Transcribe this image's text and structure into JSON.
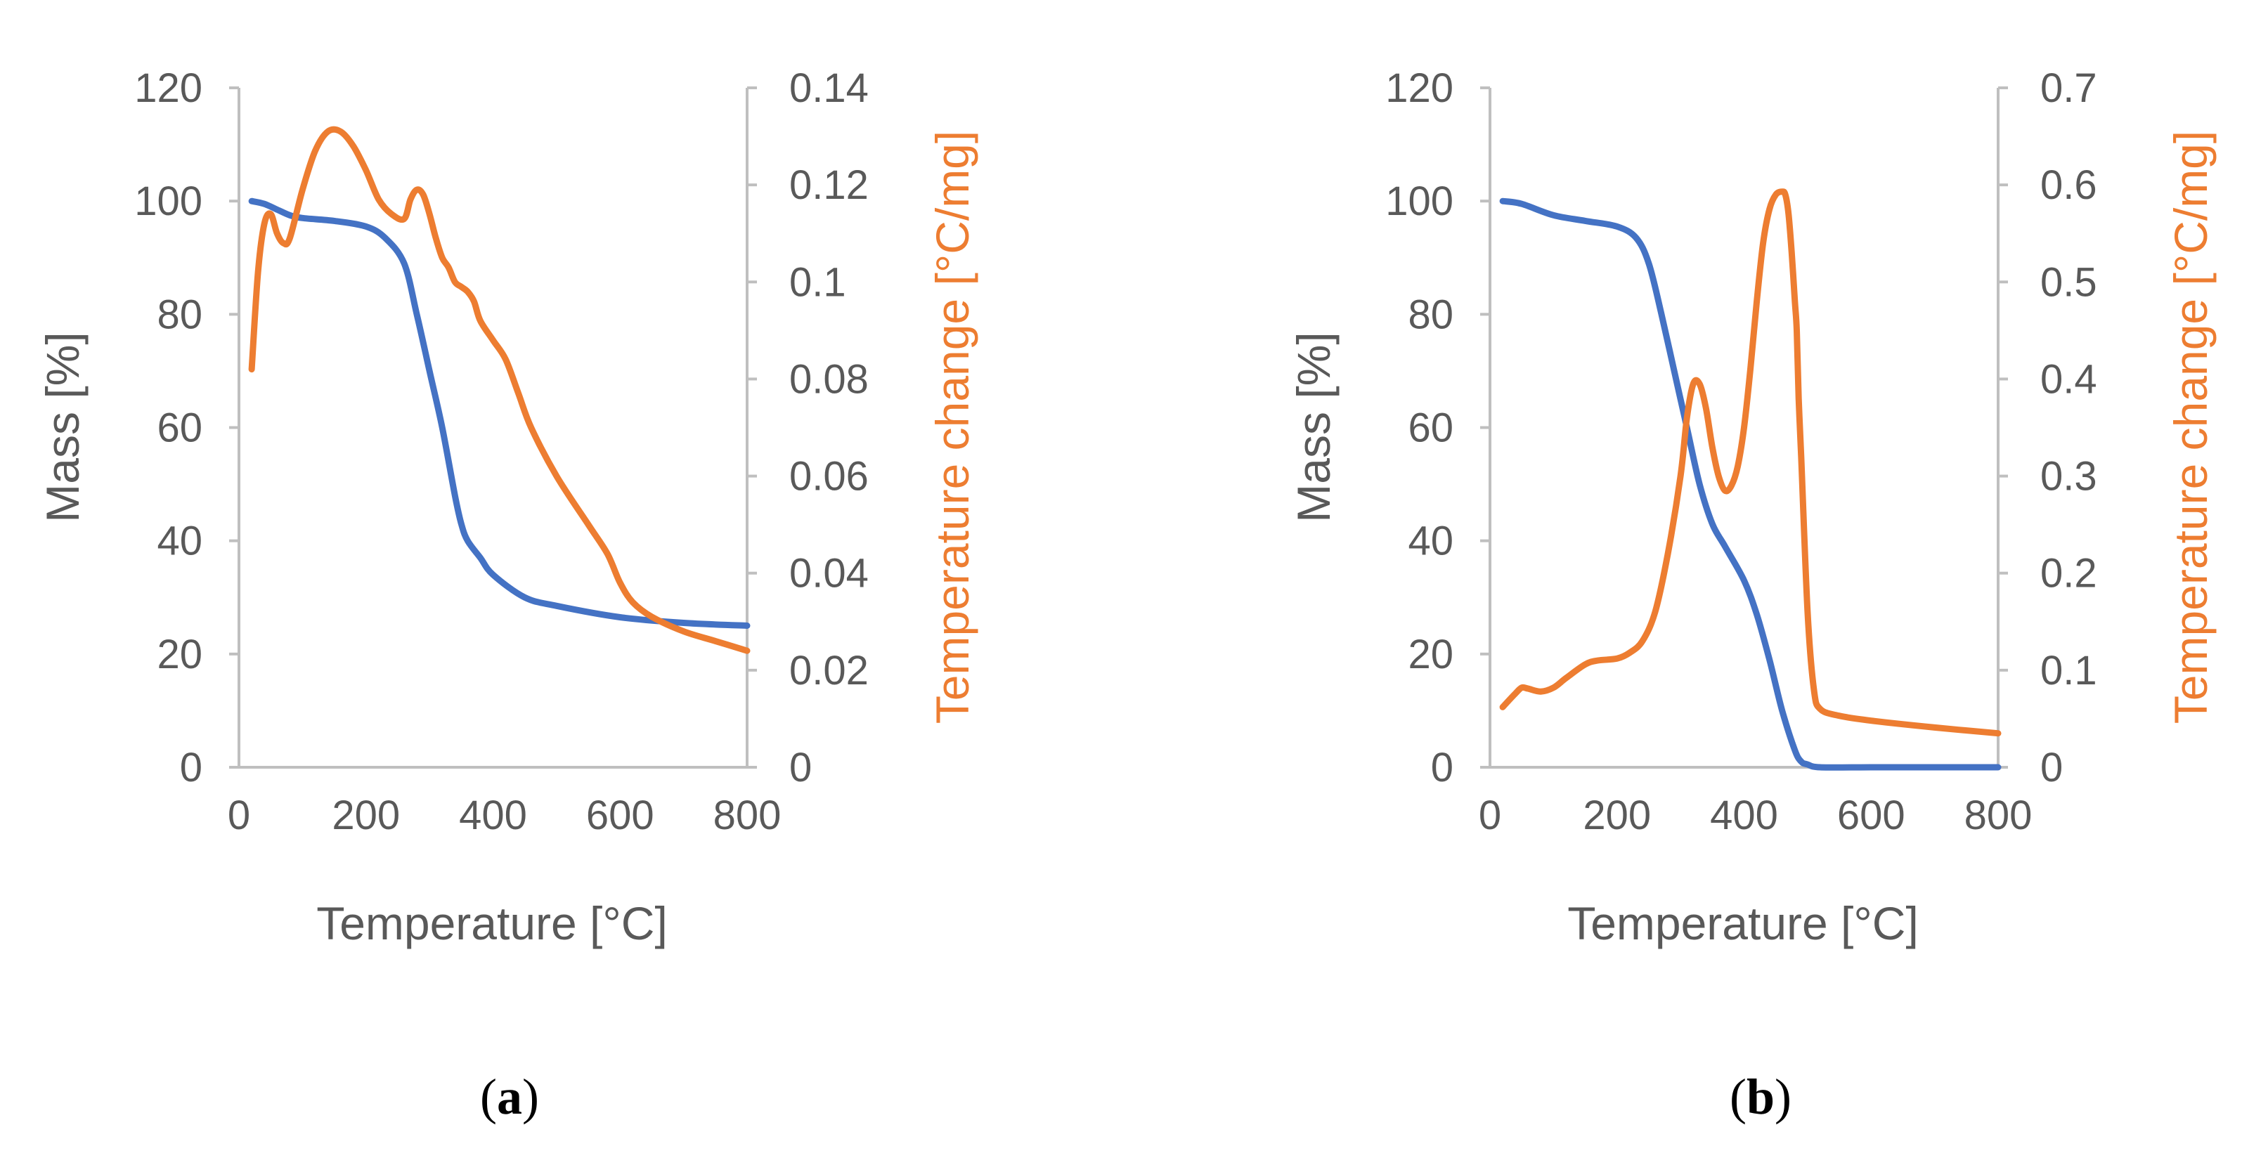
{
  "colors": {
    "mass": "#4472C4",
    "temperature_change": "#ED7D31",
    "axis": "#BFBFBF",
    "text": "#595959"
  },
  "chart_data": [
    {
      "type": "line",
      "panel_label": "a",
      "xlabel": "Temperature [°C]",
      "ylabel": "Mass [%]",
      "y2label": "Temperature change [°C/mg]",
      "xlim": [
        0,
        800
      ],
      "ylim": [
        0,
        120
      ],
      "y2lim": [
        0,
        0.14
      ],
      "xticks": [
        "0",
        "200",
        "400",
        "600",
        "800"
      ],
      "yticks": [
        "0",
        "20",
        "40",
        "60",
        "80",
        "100",
        "120"
      ],
      "y2ticks": [
        "0",
        "0.02",
        "0.04",
        "0.06",
        "0.08",
        "0.1",
        "0.12",
        "0.14"
      ],
      "grid": false,
      "series": [
        {
          "name": "Mass",
          "axis": "left",
          "x": [
            20,
            40,
            60,
            80,
            100,
            150,
            200,
            230,
            260,
            280,
            300,
            320,
            340,
            350,
            360,
            380,
            400,
            450,
            500,
            600,
            700,
            800
          ],
          "y": [
            100,
            99.5,
            98.5,
            97.5,
            97,
            96.5,
            95.5,
            93.5,
            89,
            80,
            70,
            60,
            48,
            43,
            40,
            37,
            34,
            30,
            28.5,
            26.5,
            25.5,
            25
          ]
        },
        {
          "name": "Temperature change",
          "axis": "right",
          "x": [
            20,
            30,
            40,
            50,
            60,
            70,
            80,
            100,
            120,
            140,
            160,
            180,
            200,
            220,
            240,
            260,
            270,
            280,
            290,
            300,
            310,
            320,
            330,
            340,
            350,
            360,
            370,
            380,
            400,
            420,
            440,
            460,
            500,
            550,
            580,
            600,
            620,
            650,
            700,
            750,
            800
          ],
          "y": [
            0.082,
            0.102,
            0.112,
            0.114,
            0.11,
            0.108,
            0.109,
            0.119,
            0.127,
            0.131,
            0.131,
            0.128,
            0.123,
            0.117,
            0.114,
            0.113,
            0.117,
            0.119,
            0.118,
            0.114,
            0.109,
            0.105,
            0.103,
            0.1,
            0.099,
            0.098,
            0.096,
            0.092,
            0.088,
            0.084,
            0.077,
            0.07,
            0.06,
            0.05,
            0.044,
            0.038,
            0.034,
            0.031,
            0.028,
            0.026,
            0.024
          ]
        }
      ]
    },
    {
      "type": "line",
      "panel_label": "b",
      "xlabel": "Temperature [°C]",
      "ylabel": "Mass [%]",
      "y2label": "Temperature change [°C/mg]",
      "xlim": [
        0,
        800
      ],
      "ylim": [
        0,
        120
      ],
      "y2lim": [
        0,
        0.7
      ],
      "xticks": [
        "0",
        "200",
        "400",
        "600",
        "800"
      ],
      "yticks": [
        "0",
        "20",
        "40",
        "60",
        "80",
        "100",
        "120"
      ],
      "y2ticks": [
        "0",
        "0.1",
        "0.2",
        "0.3",
        "0.4",
        "0.5",
        "0.6",
        "0.7"
      ],
      "grid": false,
      "series": [
        {
          "name": "Mass",
          "axis": "left",
          "x": [
            20,
            50,
            100,
            150,
            200,
            230,
            250,
            270,
            290,
            310,
            330,
            350,
            370,
            400,
            420,
            440,
            460,
            480,
            490,
            500,
            520,
            600,
            700,
            800
          ],
          "y": [
            100,
            99.5,
            97.5,
            96.5,
            95.5,
            93.5,
            89,
            80,
            70,
            60,
            50,
            43,
            39,
            33,
            27,
            19,
            10,
            3,
            1,
            0.5,
            0,
            0,
            0,
            0
          ]
        },
        {
          "name": "Temperature change",
          "axis": "right",
          "x": [
            20,
            40,
            50,
            60,
            80,
            100,
            120,
            150,
            170,
            200,
            220,
            240,
            260,
            280,
            300,
            310,
            320,
            330,
            340,
            350,
            360,
            370,
            380,
            390,
            400,
            410,
            420,
            430,
            440,
            450,
            460,
            465,
            470,
            475,
            480,
            483,
            486,
            490,
            500,
            510,
            520,
            550,
            600,
            700,
            800
          ],
          "y": [
            0.062,
            0.076,
            0.082,
            0.081,
            0.078,
            0.082,
            0.092,
            0.106,
            0.11,
            0.112,
            0.118,
            0.13,
            0.16,
            0.22,
            0.3,
            0.36,
            0.395,
            0.395,
            0.37,
            0.33,
            0.3,
            0.285,
            0.29,
            0.31,
            0.35,
            0.41,
            0.48,
            0.54,
            0.575,
            0.59,
            0.593,
            0.59,
            0.57,
            0.53,
            0.48,
            0.45,
            0.38,
            0.32,
            0.16,
            0.08,
            0.06,
            0.053,
            0.048,
            0.041,
            0.035
          ]
        }
      ]
    }
  ]
}
